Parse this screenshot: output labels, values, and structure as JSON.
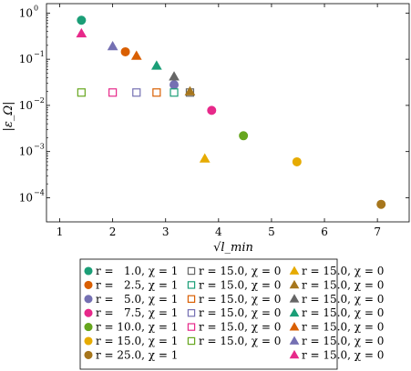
{
  "chart_data": {
    "type": "scatter",
    "xlabel": "√l_min",
    "ylabel": "|ε_Ω|",
    "xlim": [
      0.75,
      7.6
    ],
    "ylim": [
      3e-05,
      1.6
    ],
    "yscale": "log",
    "grid": false,
    "legend_position": "bottom",
    "x_ticks": [
      1,
      2,
      3,
      4,
      5,
      6,
      7
    ],
    "x_tick_labels": [
      "1",
      "2",
      "3",
      "4",
      "5",
      "6",
      "7"
    ],
    "y_ticks": [
      0.0001,
      0.001,
      0.01,
      0.1,
      1
    ],
    "y_tick_labels": [
      "10",
      "10",
      "10",
      "10",
      "10"
    ],
    "y_tick_exponents": [
      "−4",
      "−3",
      "−2",
      "−1",
      "0"
    ],
    "series": [
      {
        "name": "r =   1.0, χ = 1",
        "marker": "circle",
        "color": "#1b9e77",
        "points": [
          [
            1.41,
            0.7
          ]
        ]
      },
      {
        "name": "r =   2.5, χ = 1",
        "marker": "circle",
        "color": "#d95f02",
        "points": [
          [
            2.24,
            0.145
          ]
        ]
      },
      {
        "name": "r =   5.0, χ = 1",
        "marker": "circle",
        "color": "#7570b3",
        "points": [
          [
            3.16,
            0.028
          ]
        ]
      },
      {
        "name": "r =   7.5, χ = 1",
        "marker": "circle",
        "color": "#e7298a",
        "points": [
          [
            3.87,
            0.0078
          ]
        ]
      },
      {
        "name": "r = 10.0, χ = 1",
        "marker": "circle",
        "color": "#66a61e",
        "points": [
          [
            4.47,
            0.0022
          ]
        ]
      },
      {
        "name": "r = 15.0, χ = 1",
        "marker": "circle",
        "color": "#e6ab02",
        "points": [
          [
            5.48,
            0.0006
          ]
        ]
      },
      {
        "name": "r = 25.0, χ = 1",
        "marker": "circle",
        "color": "#a6761d",
        "points": [
          [
            7.07,
            7.2e-05
          ]
        ]
      },
      {
        "name": "r = 15.0, χ = 0",
        "marker": "square",
        "color": "#666666",
        "points": [
          [
            3.46,
            0.019
          ]
        ]
      },
      {
        "name": "r = 15.0, χ = 0",
        "marker": "square",
        "color": "#1b9e77",
        "points": [
          [
            3.16,
            0.019
          ]
        ]
      },
      {
        "name": "r = 15.0, χ = 0",
        "marker": "square",
        "color": "#d95f02",
        "points": [
          [
            2.83,
            0.019
          ]
        ]
      },
      {
        "name": "r = 15.0, χ = 0",
        "marker": "square",
        "color": "#7570b3",
        "points": [
          [
            2.45,
            0.019
          ]
        ]
      },
      {
        "name": "r = 15.0, χ = 0",
        "marker": "square",
        "color": "#e7298a",
        "points": [
          [
            2.0,
            0.019
          ]
        ]
      },
      {
        "name": "r = 15.0, χ = 0",
        "marker": "square",
        "color": "#66a61e",
        "points": [
          [
            1.41,
            0.019
          ]
        ]
      },
      {
        "name": "r = 15.0, χ = 0",
        "marker": "triangle-up",
        "color": "#e6ab02",
        "points": [
          [
            3.74,
            0.0007
          ]
        ]
      },
      {
        "name": "r = 15.0, χ = 0",
        "marker": "triangle-up",
        "color": "#a6761d",
        "points": [
          [
            3.46,
            0.02
          ]
        ]
      },
      {
        "name": "r = 15.0, χ = 0",
        "marker": "triangle-up",
        "color": "#666666",
        "points": [
          [
            3.16,
            0.042
          ]
        ]
      },
      {
        "name": "r = 15.0, χ = 0",
        "marker": "triangle-up",
        "color": "#1b9e77",
        "points": [
          [
            2.83,
            0.072
          ]
        ]
      },
      {
        "name": "r = 15.0, χ = 0",
        "marker": "triangle-up",
        "color": "#d95f02",
        "points": [
          [
            2.45,
            0.118
          ]
        ]
      },
      {
        "name": "r = 15.0, χ = 0",
        "marker": "triangle-up",
        "color": "#7570b3",
        "points": [
          [
            2.0,
            0.19
          ]
        ]
      },
      {
        "name": "r = 15.0, χ = 0",
        "marker": "triangle-up",
        "color": "#e7298a",
        "points": [
          [
            1.41,
            0.36
          ]
        ]
      }
    ]
  }
}
